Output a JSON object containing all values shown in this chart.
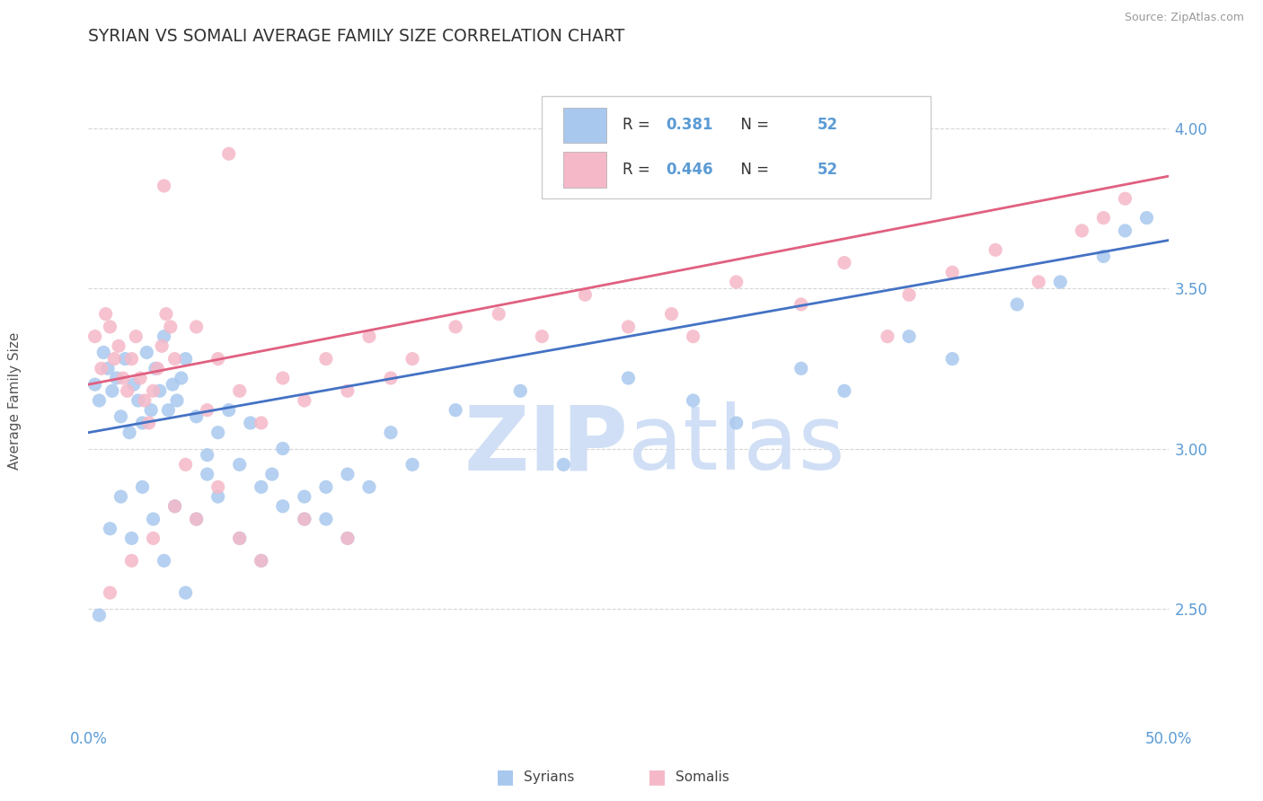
{
  "title": "SYRIAN VS SOMALI AVERAGE FAMILY SIZE CORRELATION CHART",
  "source": "Source: ZipAtlas.com",
  "ylabel": "Average Family Size",
  "yticks": [
    2.5,
    3.0,
    3.5,
    4.0
  ],
  "xlim": [
    0.0,
    50.0
  ],
  "ylim": [
    2.15,
    4.15
  ],
  "syrian_R": 0.381,
  "syrian_N": 52,
  "somali_R": 0.446,
  "somali_N": 52,
  "syrian_color": "#A8C8EE",
  "somali_color": "#F5B8C8",
  "trend_syrian_color": "#4472C4",
  "trend_somali_color": "#E06080",
  "watermark_zip": "ZIP",
  "watermark_atlas": "atlas",
  "watermark_color": "#D0DFF5",
  "grid_color": "#CCCCCC",
  "axis_color": "#5B9BD5",
  "syrian_x": [
    0.3,
    0.5,
    0.7,
    0.9,
    1.1,
    1.3,
    1.5,
    1.7,
    1.9,
    2.1,
    2.3,
    2.5,
    2.7,
    2.9,
    3.1,
    3.3,
    3.5,
    3.7,
    3.9,
    4.1,
    4.3,
    4.5,
    5.0,
    5.5,
    6.0,
    6.5,
    7.0,
    7.5,
    8.0,
    8.5,
    9.0,
    10.0,
    11.0,
    12.0,
    13.0,
    14.0,
    15.0,
    17.0,
    20.0,
    22.0,
    25.0,
    28.0,
    30.0,
    33.0,
    35.0,
    38.0,
    40.0,
    43.0,
    45.0,
    47.0,
    48.0,
    49.0
  ],
  "syrian_y": [
    3.2,
    3.15,
    3.3,
    3.25,
    3.18,
    3.22,
    3.1,
    3.28,
    3.05,
    3.2,
    3.15,
    3.08,
    3.3,
    3.12,
    3.25,
    3.18,
    3.35,
    3.12,
    3.2,
    3.15,
    3.22,
    3.28,
    3.1,
    2.98,
    3.05,
    3.12,
    2.95,
    3.08,
    2.88,
    2.92,
    3.0,
    2.85,
    2.78,
    2.92,
    2.88,
    3.05,
    2.95,
    3.12,
    3.18,
    2.95,
    3.22,
    3.15,
    3.08,
    3.25,
    3.18,
    3.35,
    3.28,
    3.45,
    3.52,
    3.6,
    3.68,
    3.72
  ],
  "somali_x": [
    0.3,
    0.6,
    0.8,
    1.0,
    1.2,
    1.4,
    1.6,
    1.8,
    2.0,
    2.2,
    2.4,
    2.6,
    2.8,
    3.0,
    3.2,
    3.4,
    3.6,
    3.8,
    4.0,
    4.5,
    5.0,
    5.5,
    6.0,
    7.0,
    8.0,
    9.0,
    10.0,
    11.0,
    12.0,
    13.0,
    14.0,
    15.0,
    17.0,
    19.0,
    21.0,
    23.0,
    25.0,
    27.0,
    30.0,
    33.0,
    35.0,
    37.0,
    38.0,
    40.0,
    42.0,
    44.0,
    46.0,
    47.0,
    48.0,
    3.5,
    6.5,
    28.0
  ],
  "somali_y": [
    3.35,
    3.25,
    3.42,
    3.38,
    3.28,
    3.32,
    3.22,
    3.18,
    3.28,
    3.35,
    3.22,
    3.15,
    3.08,
    3.18,
    3.25,
    3.32,
    3.42,
    3.38,
    3.28,
    2.95,
    3.38,
    3.12,
    3.28,
    3.18,
    3.08,
    3.22,
    3.15,
    3.28,
    3.18,
    3.35,
    3.22,
    3.28,
    3.38,
    3.42,
    3.35,
    3.48,
    3.38,
    3.42,
    3.52,
    3.45,
    3.58,
    3.35,
    3.48,
    3.55,
    3.62,
    3.52,
    3.68,
    3.72,
    3.78,
    3.82,
    3.92,
    3.35
  ],
  "syrian_x_low": [
    0.5,
    1.0,
    1.5,
    2.0,
    2.5,
    3.0,
    3.5,
    4.0,
    4.5,
    5.0,
    5.5,
    6.0,
    7.0,
    8.0,
    9.0,
    10.0,
    11.0,
    12.0
  ],
  "syrian_y_low": [
    2.48,
    2.75,
    2.85,
    2.72,
    2.88,
    2.78,
    2.65,
    2.82,
    2.55,
    2.78,
    2.92,
    2.85,
    2.72,
    2.65,
    2.82,
    2.78,
    2.88,
    2.72
  ],
  "somali_x_low": [
    1.0,
    2.0,
    3.0,
    4.0,
    5.0,
    6.0,
    7.0,
    8.0,
    10.0,
    12.0
  ],
  "somali_y_low": [
    2.55,
    2.65,
    2.72,
    2.82,
    2.78,
    2.88,
    2.72,
    2.65,
    2.78,
    2.72
  ]
}
